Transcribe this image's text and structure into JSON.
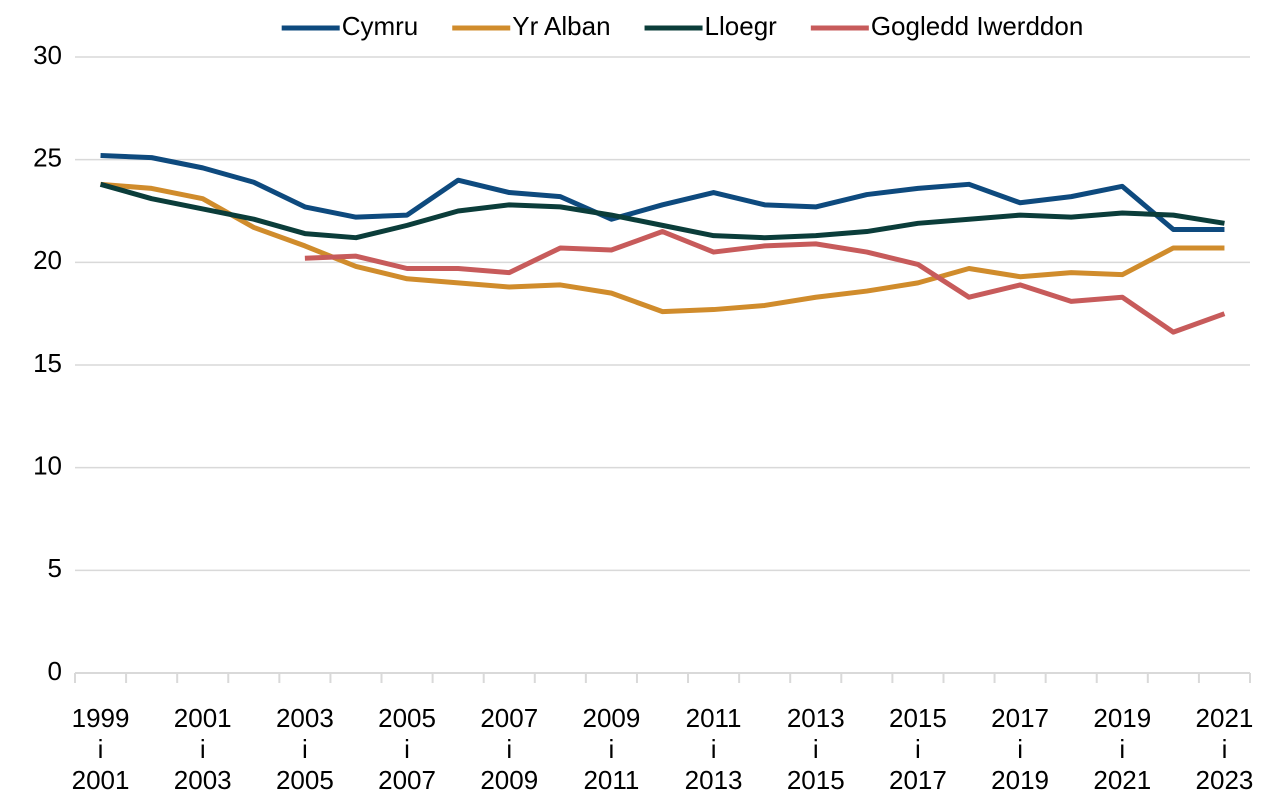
{
  "chart_data": {
    "type": "line",
    "categories": [
      "1999\ni\n2001",
      null,
      "2001\ni\n2003",
      null,
      "2003\ni\n2005",
      null,
      "2005\ni\n2007",
      null,
      "2007\ni\n2009",
      null,
      "2009\ni\n2011",
      null,
      "2011\ni\n2013",
      null,
      "2013\ni\n2015",
      null,
      "2015\ni\n2017",
      null,
      "2017\ni\n2019",
      null,
      "2019\ni\n2021",
      null,
      "2021\ni\n2023"
    ],
    "series": [
      {
        "name": "Cymru",
        "color": "#0e4a7e",
        "values": [
          25.2,
          25.1,
          24.6,
          23.9,
          22.7,
          22.2,
          22.3,
          24.0,
          23.4,
          23.2,
          22.1,
          22.8,
          23.4,
          22.8,
          22.7,
          23.3,
          23.6,
          23.8,
          22.9,
          23.2,
          23.7,
          21.6,
          21.6
        ]
      },
      {
        "name": "Yr Alban",
        "color": "#d08c2c",
        "values": [
          23.8,
          23.6,
          23.1,
          21.7,
          20.8,
          19.8,
          19.2,
          19.0,
          18.8,
          18.9,
          18.5,
          17.6,
          17.7,
          17.9,
          18.3,
          18.6,
          19.0,
          19.7,
          19.3,
          19.5,
          19.4,
          20.7,
          20.7
        ]
      },
      {
        "name": "Lloegr",
        "color": "#0b3d3a",
        "values": [
          23.8,
          23.1,
          22.6,
          22.1,
          21.4,
          21.2,
          21.8,
          22.5,
          22.8,
          22.7,
          22.3,
          21.8,
          21.3,
          21.2,
          21.3,
          21.5,
          21.9,
          22.1,
          22.3,
          22.2,
          22.4,
          22.3,
          21.9
        ]
      },
      {
        "name": "Gogledd Iwerddon",
        "color": "#c75b5b",
        "values": [
          null,
          null,
          null,
          null,
          20.2,
          20.3,
          19.7,
          19.7,
          19.5,
          20.7,
          20.6,
          21.5,
          20.5,
          20.8,
          20.9,
          20.5,
          19.9,
          18.3,
          18.9,
          18.1,
          18.3,
          16.6,
          17.5
        ]
      }
    ],
    "ylim": [
      0,
      30
    ],
    "yticks": [
      0,
      5,
      10,
      15,
      20,
      25,
      30
    ],
    "grid": true,
    "legend": "top"
  }
}
